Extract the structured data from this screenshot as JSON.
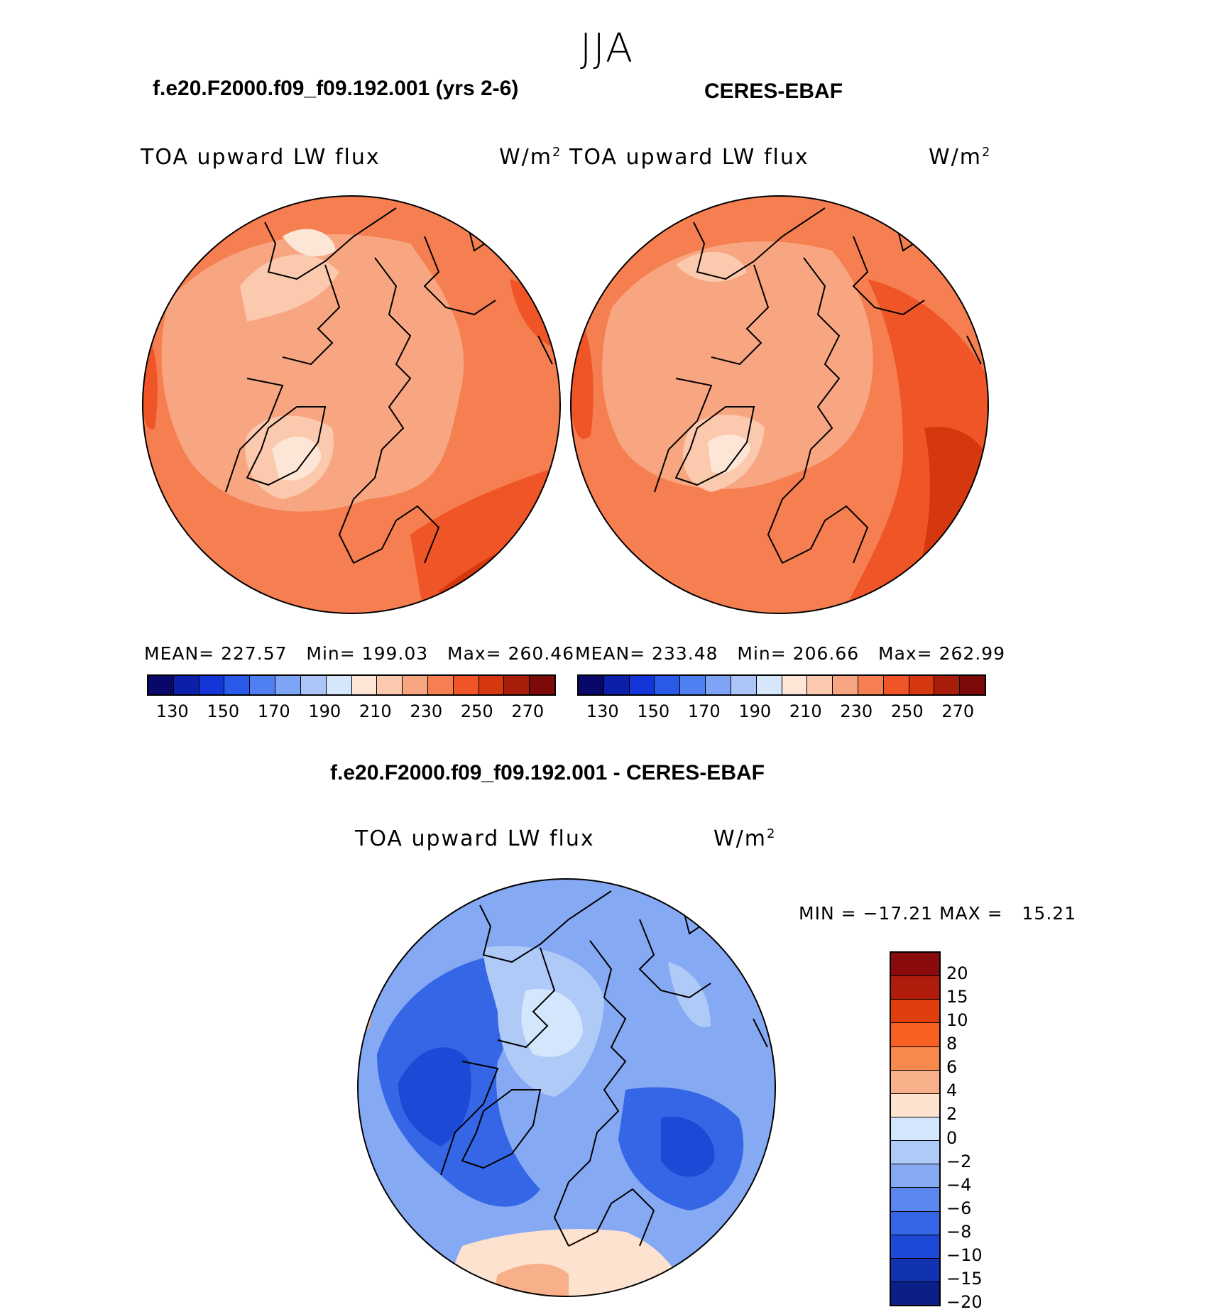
{
  "season": "JJA",
  "panels": [
    {
      "title": "f.e20.F2000.f09_f09.192.001 (yrs 2-6)",
      "variable": "TOA upward LW flux",
      "units_base": "W/m",
      "units_exp": "2",
      "mean_label": "MEAN=",
      "mean": "227.57",
      "min_label": "Min=",
      "min": "199.03",
      "max_label": "Max=",
      "max": "260.46"
    },
    {
      "title": "CERES-EBAF",
      "variable": "TOA upward LW flux",
      "units_base": "W/m",
      "units_exp": "2",
      "mean_label": "MEAN=",
      "mean": "233.48",
      "min_label": "Min=",
      "min": "206.66",
      "max_label": "Max=",
      "max": "262.99"
    }
  ],
  "diff": {
    "title": "f.e20.F2000.f09_f09.192.001 - CERES-EBAF",
    "variable": "TOA upward LW flux",
    "units_base": "W/m",
    "units_exp": "2",
    "min_label": "MIN =",
    "min": "−17.21",
    "max_label": "MAX =",
    "max": "15.21"
  },
  "abs_colorbar": {
    "colors": [
      "#08086b",
      "#0c1fa8",
      "#1436d8",
      "#2a5ae8",
      "#4f7ff0",
      "#7ea4f5",
      "#acc5f8",
      "#d6e6fb",
      "#fde6d5",
      "#fbc9ad",
      "#f8a682",
      "#f57f50",
      "#ef5526",
      "#d5380e",
      "#a81c0a",
      "#7c0a08"
    ],
    "labels": [
      "130",
      "150",
      "170",
      "190",
      "210",
      "230",
      "250",
      "270"
    ]
  },
  "diff_colorbar": {
    "colors": [
      "#8a0b0b",
      "#b01d0c",
      "#e03e0c",
      "#f76020",
      "#f7884e",
      "#f8b08a",
      "#fde3cf",
      "#d3e6fb",
      "#afcaf7",
      "#86a9f3",
      "#5b87ee",
      "#3466e6",
      "#1c49d6",
      "#1233b1",
      "#0b1f86"
    ],
    "labels": [
      "20",
      "15",
      "10",
      "8",
      "6",
      "4",
      "2",
      "0",
      "−2",
      "−4",
      "−6",
      "−8",
      "−10",
      "−15",
      "−20"
    ]
  },
  "maps": [
    {
      "field": "model_absolute",
      "base_color": "#f57f50",
      "patches": [
        {
          "color": "#f8a682",
          "value": "225"
        },
        {
          "color": "#fbc9ad",
          "value": "215"
        },
        {
          "color": "#fde6d5",
          "value": "205"
        },
        {
          "color": "#ef5526",
          "value": "245"
        },
        {
          "color": "#d5380e",
          "value": "255"
        }
      ]
    },
    {
      "field": "obs_absolute",
      "base_color": "#f57f50",
      "patches": [
        {
          "color": "#f8a682",
          "value": "225"
        },
        {
          "color": "#fbc9ad",
          "value": "215"
        },
        {
          "color": "#fde6d5",
          "value": "205"
        },
        {
          "color": "#ef5526",
          "value": "245"
        },
        {
          "color": "#d5380e",
          "value": "255"
        }
      ]
    },
    {
      "field": "difference",
      "base_color": "#86a9f3",
      "patches": [
        {
          "color": "#3466e6",
          "value": "-9"
        },
        {
          "color": "#1c49d6",
          "value": "-12"
        },
        {
          "color": "#afcaf7",
          "value": "-3"
        },
        {
          "color": "#d3e6fb",
          "value": "-1"
        },
        {
          "color": "#fde3cf",
          "value": "1"
        },
        {
          "color": "#f8b08a",
          "value": "4"
        },
        {
          "color": "#f7884e",
          "value": "7"
        }
      ]
    }
  ]
}
